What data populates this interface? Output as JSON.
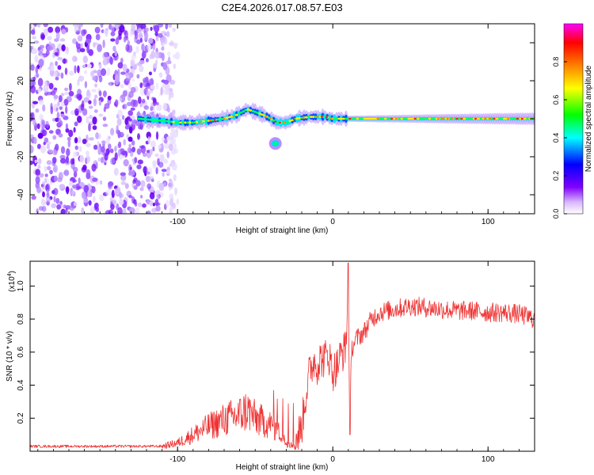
{
  "figure_title": "C2E4.2026.017.08.57.E03",
  "chart_data": [
    {
      "type": "heatmap",
      "xlabel": "Height of straight line (km)",
      "ylabel": "Frequency (Hz)",
      "xlim": [
        -195,
        130
      ],
      "ylim": [
        -50,
        50
      ],
      "xticks": [
        -100,
        0,
        100
      ],
      "xtick_labels": [
        "-100",
        "0",
        "100"
      ],
      "yticks": [
        -40,
        -20,
        0,
        20,
        40
      ],
      "ytick_labels": [
        "-40",
        "-20",
        "0",
        "20",
        "40"
      ],
      "colorbar": {
        "label": "Normalized spectral amplitude",
        "range": [
          0,
          1
        ],
        "ticks": [
          0.0,
          0.2,
          0.4,
          0.6,
          0.8
        ],
        "tick_labels": [
          "0.0",
          "0.2",
          "0.4",
          "0.6",
          "0.8"
        ],
        "colormap": [
          "#ffffff",
          "#8000ff",
          "#0000ff",
          "#00ffff",
          "#00ff00",
          "#ffff00",
          "#ff8000",
          "#ff0000",
          "#ff00ff"
        ]
      },
      "features": {
        "noise_region_x": [
          -195,
          -103
        ],
        "track_points_km_hz": [
          [
            -125,
            0
          ],
          [
            -110,
            -1
          ],
          [
            -100,
            -2
          ],
          [
            -90,
            -2
          ],
          [
            -80,
            -1
          ],
          [
            -70,
            0
          ],
          [
            -62,
            2
          ],
          [
            -55,
            5
          ],
          [
            -48,
            3
          ],
          [
            -42,
            1
          ],
          [
            -36,
            -2
          ],
          [
            -30,
            -2
          ],
          [
            -24,
            0
          ],
          [
            -15,
            1
          ],
          [
            -5,
            1
          ],
          [
            0,
            0
          ],
          [
            10,
            0
          ],
          [
            30,
            0
          ],
          [
            60,
            0
          ],
          [
            100,
            0
          ],
          [
            130,
            0
          ]
        ],
        "side_blob_km_hz": [
          -37,
          -13
        ]
      }
    },
    {
      "type": "line",
      "xlabel": "Height of straight line (km)",
      "ylabel": "SNR (10 * v/v)",
      "yscale_label": "(x10",
      "yscale_exponent": "4",
      "xlim": [
        -195,
        130
      ],
      "ylim": [
        0,
        1.15
      ],
      "xticks": [
        -100,
        0,
        100
      ],
      "xtick_labels": [
        "-100",
        "0",
        "100"
      ],
      "yticks": [
        0.2,
        0.4,
        0.6,
        0.8,
        1.0
      ],
      "ytick_labels": [
        "0.2",
        "0.4",
        "0.6",
        "0.8",
        "1.0"
      ],
      "color": "#ee3333",
      "series": [
        {
          "name": "SNR",
          "x": [
            -195,
            -150,
            -110,
            -100,
            -90,
            -80,
            -70,
            -60,
            -55,
            -50,
            -45,
            -40,
            -35,
            -30,
            -25,
            -20,
            -18,
            -15,
            -12,
            -10,
            -8,
            -5,
            -3,
            0,
            3,
            5,
            8,
            9,
            10,
            11,
            12,
            15,
            20,
            25,
            30,
            40,
            50,
            60,
            70,
            80,
            90,
            100,
            110,
            120,
            130
          ],
          "values": [
            0.03,
            0.03,
            0.03,
            0.05,
            0.1,
            0.15,
            0.19,
            0.22,
            0.25,
            0.2,
            0.18,
            0.16,
            0.12,
            0.05,
            0.04,
            0.15,
            0.3,
            0.48,
            0.55,
            0.52,
            0.56,
            0.56,
            0.6,
            0.48,
            0.52,
            0.58,
            0.62,
            0.75,
            1.02,
            0.1,
            0.62,
            0.68,
            0.72,
            0.8,
            0.84,
            0.86,
            0.88,
            0.87,
            0.86,
            0.85,
            0.85,
            0.84,
            0.84,
            0.83,
            0.8
          ]
        }
      ]
    }
  ]
}
